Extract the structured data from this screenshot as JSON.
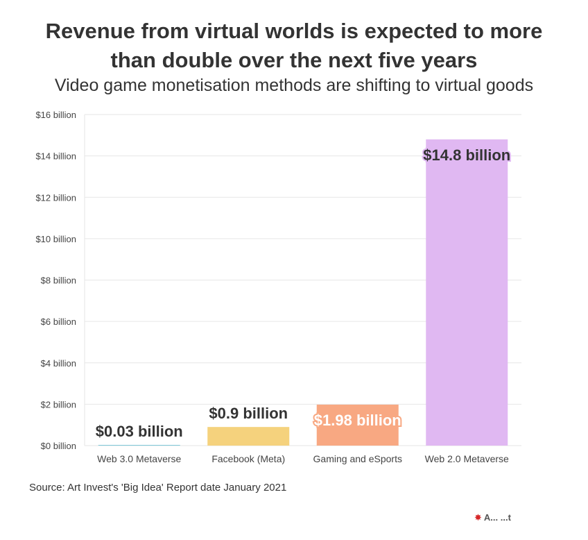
{
  "header": {
    "title_line1": "Revenue from virtual worlds is expected to more",
    "title_line2": "than double over the next five years",
    "subtitle": "Video game monetisation methods are shifting to virtual goods"
  },
  "footer": {
    "source": "Source: Art Invest's 'Big Idea' Report date January 2021",
    "brand": "A... ...t"
  },
  "chart_data": {
    "type": "bar",
    "title": "Revenue from virtual worlds is expected to more than double over the next five years",
    "subtitle": "Video game monetisation methods are shifting to virtual goods",
    "xlabel": "",
    "ylabel": "",
    "ylim": [
      0,
      16
    ],
    "grid": true,
    "yticks": [
      0,
      2,
      4,
      6,
      8,
      10,
      12,
      14,
      16
    ],
    "ytick_labels": [
      "$0 billion",
      "$2 billion",
      "$4 billion",
      "$6 billion",
      "$8 billion",
      "$10 billion",
      "$12 billion",
      "$14 billion",
      "$16 billion"
    ],
    "categories": [
      "Web 3.0 Metaverse",
      "Facebook (Meta)",
      "Gaming and eSports",
      "Web 2.0 Metaverse"
    ],
    "values": [
      0.03,
      0.9,
      1.98,
      14.8
    ],
    "data_labels": [
      "$0.03 billion",
      "$0.9 billion",
      "$1.98 billion",
      "$14.8 billion"
    ],
    "colors": [
      "#7ec8d8",
      "#f5d27d",
      "#f8a882",
      "#e0b8f2"
    ],
    "label_colors": [
      "#333333",
      "#333333",
      "#ffffff",
      "#333333"
    ]
  }
}
